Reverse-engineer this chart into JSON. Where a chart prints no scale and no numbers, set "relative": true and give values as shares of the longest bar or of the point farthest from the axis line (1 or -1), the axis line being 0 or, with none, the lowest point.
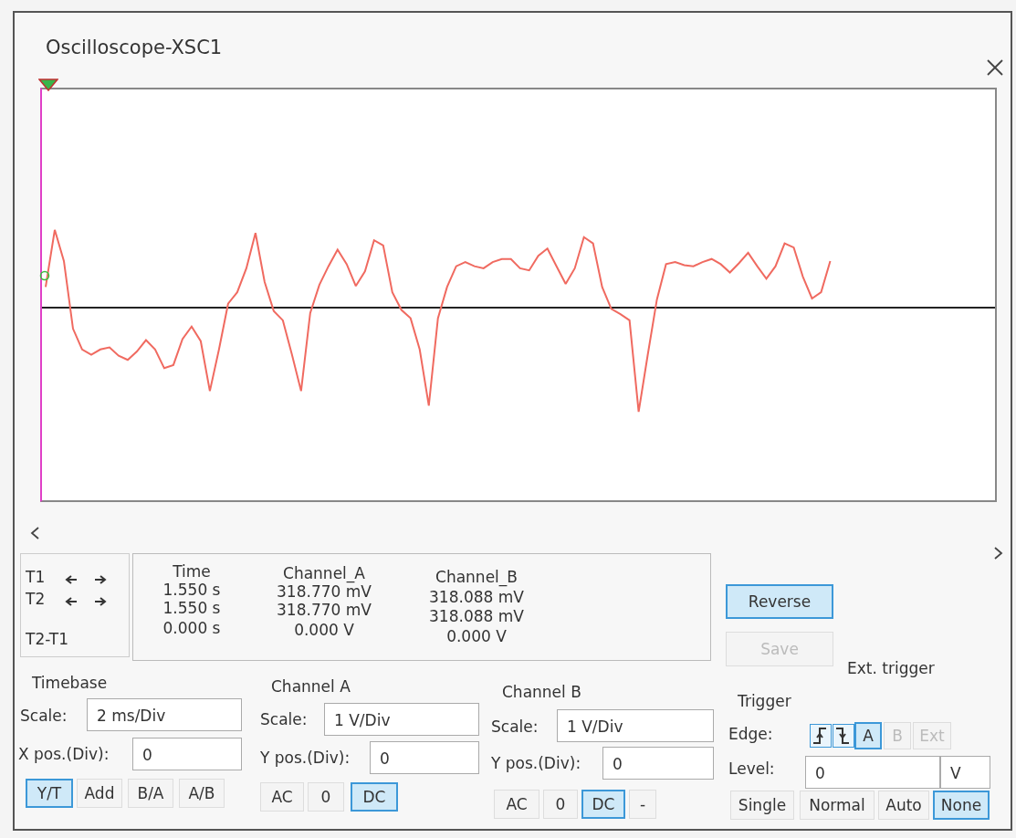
{
  "chart_data": [
    {
      "type": "line",
      "title": "Oscilloscope-XSC1",
      "relative": true,
      "categories": [
        null,
        null,
        null,
        null,
        null,
        null,
        null,
        null,
        null,
        null,
        null,
        null,
        null,
        null,
        null,
        null,
        null,
        null,
        null,
        null,
        null,
        null,
        null,
        null,
        null,
        null,
        null,
        null,
        null,
        null,
        null,
        null,
        null,
        null,
        null,
        null,
        null,
        null,
        null,
        null,
        null,
        null,
        null,
        null,
        null,
        null,
        null,
        null,
        null,
        null,
        null,
        null,
        null,
        null,
        null,
        null,
        null,
        null,
        null,
        null,
        null,
        null,
        null,
        null,
        null,
        null,
        null,
        null,
        null,
        null,
        null,
        null,
        null,
        null,
        null,
        null,
        null,
        null,
        null,
        null,
        null,
        null,
        null,
        null,
        null,
        null,
        null
      ],
      "series": [
        {
          "color": "#f06a60",
          "values": [
            0.2,
            0.75,
            0.45,
            -0.2,
            -0.4,
            -0.45,
            -0.4,
            -0.38,
            -0.46,
            -0.5,
            -0.42,
            -0.31,
            -0.4,
            -0.58,
            -0.55,
            -0.3,
            -0.18,
            -0.32,
            -0.8,
            -0.4,
            0.04,
            0.15,
            0.38,
            0.72,
            0.25,
            -0.03,
            -0.12,
            -0.45,
            -0.8,
            -0.05,
            0.22,
            0.4,
            0.56,
            0.42,
            0.21,
            0.35,
            0.65,
            0.6,
            0.15,
            -0.02,
            -0.1,
            -0.4,
            -0.94,
            -0.1,
            0.2,
            0.4,
            0.44,
            0.4,
            0.38,
            0.44,
            0.47,
            0.47,
            0.38,
            0.36,
            0.5,
            0.57,
            0.4,
            0.23,
            0.38,
            0.68,
            0.62,
            0.2,
            -0.01,
            -0.06,
            -0.12,
            -1.0,
            -0.45,
            0.08,
            0.42,
            0.44,
            0.41,
            0.4,
            0.44,
            0.47,
            0.42,
            0.34,
            0.43,
            0.53,
            0.4,
            0.28,
            0.4,
            0.62,
            0.58,
            0.3,
            0.09,
            0.15,
            0.45
          ]
        }
      ]
    },
    {
      "type": "other",
      "annotations": [
        "T1",
        "T2",
        "T2-T1",
        "Time",
        "1.550 s",
        "1.550 s",
        "0.000 s",
        "Channel_A",
        "318.770 mV",
        "318.770 mV",
        "0.000 V",
        "Channel_B",
        "318.088 mV",
        "318.088 mV",
        "0.000 V",
        "Reverse",
        "Save",
        "Ext. trigger",
        "Timebase",
        "Scale:",
        "2 ms/Div",
        "X pos.(Div):",
        "0",
        "Y/T",
        "Add",
        "B/A",
        "A/B",
        "Channel A",
        "Scale:",
        "1 V/Div",
        "Y pos.(Div):",
        "0",
        "AC",
        "0",
        "DC",
        "Channel B",
        "Scale:",
        "1 V/Div",
        "Y pos.(Div):",
        "0",
        "AC",
        "0",
        "DC",
        "-",
        "Trigger",
        "Edge:",
        "A",
        "B",
        "Ext",
        "Level:",
        "0",
        "V",
        "Single",
        "Normal",
        "Auto",
        "None"
      ]
    }
  ]
}
